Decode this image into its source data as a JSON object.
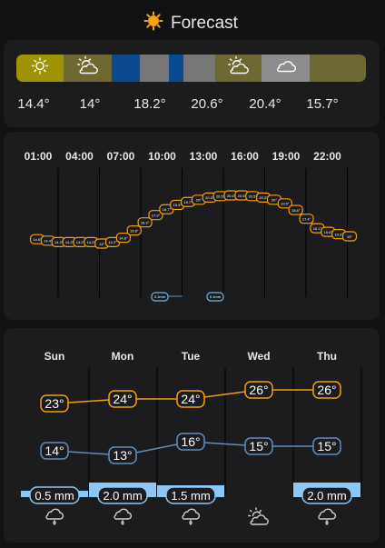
{
  "header": {
    "title": "Forecast",
    "icon": "sun-icon"
  },
  "conditions": {
    "colors": {
      "sunny": "#9e9300",
      "partly_cloudy": "#6e6833",
      "rainy": "#0c4a8f",
      "cloudy": "#777777",
      "cloudy_light": "#8c8c8c"
    },
    "segments": [
      {
        "condition": "sunny",
        "icon": "sun-icon"
      },
      {
        "condition": "partly-cloudy",
        "icon": "partly-cloudy-icon"
      },
      {
        "condition": "rainy",
        "icon": ""
      },
      {
        "condition": "cloudy",
        "icon": ""
      },
      {
        "condition": "rainy",
        "icon": ""
      },
      {
        "condition": "cloudy",
        "icon": ""
      },
      {
        "condition": "partly-cloudy",
        "icon": "partly-cloudy-icon"
      },
      {
        "condition": "cloudy",
        "icon": "cloud-icon"
      },
      {
        "condition": "partly-cloudy",
        "icon": ""
      }
    ],
    "temps": [
      "14.4°",
      "14°",
      "18.2°",
      "20.6°",
      "20.4°",
      "15.7°"
    ]
  },
  "hourly": {
    "times": [
      "01:00",
      "04:00",
      "07:00",
      "10:00",
      "13:00",
      "16:00",
      "19:00",
      "22:00"
    ],
    "temperature_points": [
      14.6,
      14.4,
      14.2,
      14.2,
      14.2,
      14.2,
      14.0,
      14.2,
      14.8,
      15.8,
      16.9,
      17.9,
      18.7,
      19.3,
      19.7,
      20.0,
      20.3,
      20.5,
      20.6,
      20.6,
      20.5,
      20.3,
      20.0,
      19.5,
      18.6,
      17.4,
      16.1,
      15.6,
      15.3,
      15.0
    ],
    "precip_labels": [
      "0.1mm",
      "0.1mm"
    ],
    "colors": {
      "temperature": "#f59e0b",
      "precip": "#68b7ee"
    }
  },
  "daily": {
    "colors": {
      "high": "#f59e0b",
      "low": "#5e8fbf",
      "precip": "#8cc8f5"
    },
    "days": [
      {
        "name": "Sun",
        "high": "23°",
        "low": "14°",
        "precip": "0.5 mm",
        "precip_amount": 0.5,
        "icon": "rain-cloud-icon"
      },
      {
        "name": "Mon",
        "high": "24°",
        "low": "13°",
        "precip": "2.0 mm",
        "precip_amount": 2.0,
        "icon": "rain-cloud-icon"
      },
      {
        "name": "Tue",
        "high": "24°",
        "low": "16°",
        "precip": "1.5 mm",
        "precip_amount": 1.5,
        "icon": "rain-cloud-icon"
      },
      {
        "name": "Wed",
        "high": "26°",
        "low": "15°",
        "precip": "",
        "precip_amount": 0,
        "icon": "partly-cloudy-icon"
      },
      {
        "name": "Thu",
        "high": "26°",
        "low": "15°",
        "precip": "2.0 mm",
        "precip_amount": 2.0,
        "icon": "rain-cloud-icon"
      }
    ]
  }
}
